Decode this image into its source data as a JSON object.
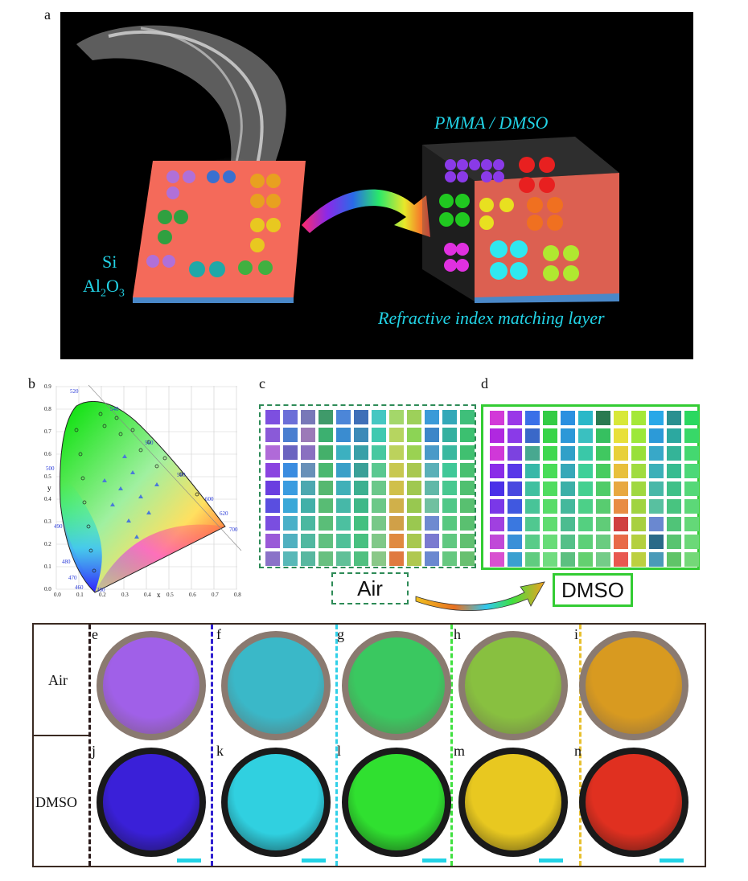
{
  "panel_a": {
    "label": "a",
    "title_material": "PMMA / DMSO",
    "layer_caption": "Refractive index matching layer",
    "si_label": "Si",
    "al2o3_label_base": "Al",
    "al2o3_sub1": "2",
    "al2o3_mid": "O",
    "al2o3_sub2": "3",
    "substrate_color": "#f46a5a",
    "text_color": "#22d3e6"
  },
  "panel_b": {
    "label": "b",
    "y_axis_letter": "y",
    "x_axis_letter": "x",
    "x_ticks": [
      "0.0",
      "0.1",
      "0.2",
      "0.3",
      "0.4",
      "0.5",
      "0.6",
      "0.7",
      "0.8"
    ],
    "y_ticks": [
      "0.0",
      "0.1",
      "0.2",
      "0.3",
      "0.4",
      "0.5",
      "0.6",
      "0.7",
      "0.8",
      "0.9"
    ],
    "wavelengths": [
      "520",
      "540",
      "560",
      "580",
      "600",
      "620",
      "700",
      "500",
      "490",
      "480",
      "470",
      "460",
      "380"
    ]
  },
  "panel_c": {
    "label": "c",
    "medium": "Air",
    "colors": [
      "#7d4fe0",
      "#6b6fd8",
      "#7878b8",
      "#3f9a6a",
      "#4c86d8",
      "#3f6fb8",
      "#45c7c2",
      "#a4d76a",
      "#9dd05a",
      "#3a9ad8",
      "#33a8b8",
      "#3fbf7a",
      "#8a5ad8",
      "#4a7fd0",
      "#9c7ab8",
      "#3cb070",
      "#3a8cd0",
      "#3c8ab8",
      "#40c9b0",
      "#b6d560",
      "#8cd455",
      "#3c86c8",
      "#35b0a0",
      "#3cc070",
      "#b06ad8",
      "#6a64c0",
      "#8a70c0",
      "#44b06a",
      "#3cb0c0",
      "#38a0a8",
      "#48c8a0",
      "#bcd25c",
      "#9ad252",
      "#4a9ac8",
      "#3ab8a0",
      "#40c070",
      "#8a44e0",
      "#3a8ce0",
      "#6890b8",
      "#4ab870",
      "#3aa0c8",
      "#3aa098",
      "#5ac890",
      "#c8c850",
      "#a8c850",
      "#5ab0b8",
      "#40c898",
      "#48c070",
      "#6a3ee0",
      "#3a9ce0",
      "#4ca8b0",
      "#56b870",
      "#40b0b8",
      "#3cb090",
      "#6ac88a",
      "#d0c04a",
      "#a0c850",
      "#60b8a8",
      "#48c890",
      "#50c070",
      "#5a4ee0",
      "#3aa8d8",
      "#42b0a8",
      "#58bc74",
      "#46b8a8",
      "#3eb888",
      "#6cc888",
      "#d0b04a",
      "#98c850",
      "#70c0a0",
      "#50c888",
      "#58c070",
      "#7a4ee0",
      "#4ab0c8",
      "#4ab8a0",
      "#5abe78",
      "#4cc0a0",
      "#44c080",
      "#78c888",
      "#d0a048",
      "#9ac850",
      "#6e8ad0",
      "#58c880",
      "#5ac070",
      "#9a5ad8",
      "#50b0c0",
      "#50b8a0",
      "#60c080",
      "#50c098",
      "#48c080",
      "#80c888",
      "#e08a40",
      "#a8c850",
      "#7a7ad0",
      "#60c880",
      "#60c070",
      "#8a72c8",
      "#58b8b8",
      "#58b8a0",
      "#68c080",
      "#60c098",
      "#50c080",
      "#8ac888",
      "#e07a40",
      "#b0c850",
      "#6a88d0",
      "#66c880",
      "#68c070"
    ]
  },
  "panel_d": {
    "label": "d",
    "medium": "DMSO",
    "colors": [
      "#d23ad8",
      "#9a38e8",
      "#3a70e8",
      "#33cc44",
      "#2a90e0",
      "#2ab8c8",
      "#2a7a50",
      "#d8e838",
      "#a4e838",
      "#28a8e8",
      "#2a9090",
      "#2ad860",
      "#b028e0",
      "#8a3ae8",
      "#3a68c8",
      "#38d448",
      "#2c98d8",
      "#3ac0c0",
      "#36c060",
      "#e8e03a",
      "#9ce83a",
      "#2c9ad8",
      "#2ca8a0",
      "#38d868",
      "#d038d8",
      "#7c42e0",
      "#48a890",
      "#40d850",
      "#30a0c8",
      "#3ac8a8",
      "#40c860",
      "#e8d03a",
      "#98e03a",
      "#38a8c8",
      "#34b498",
      "#44d870",
      "#8a2ce8",
      "#5838e8",
      "#38b8a8",
      "#48dc58",
      "#36a8b8",
      "#3ed098",
      "#48cc60",
      "#e8c03c",
      "#a0dc40",
      "#3cb0b8",
      "#38bc90",
      "#4cd878",
      "#4a30e8",
      "#4848e0",
      "#40c0a0",
      "#50dc60",
      "#3cb0a8",
      "#44d090",
      "#50cc68",
      "#e8a840",
      "#a0d840",
      "#48b8a8",
      "#40c088",
      "#54d878",
      "#7a38e8",
      "#4058e0",
      "#48c498",
      "#58dc68",
      "#44b89c",
      "#4cd088",
      "#58cc70",
      "#e88c44",
      "#a0d440",
      "#58c0a0",
      "#48c480",
      "#5cd878",
      "#a040e0",
      "#3a78e0",
      "#50c890",
      "#60dc70",
      "#4cbc90",
      "#54d080",
      "#60cc78",
      "#d04040",
      "#a8d040",
      "#6a88d0",
      "#50c478",
      "#64d878",
      "#c048d8",
      "#3a90d8",
      "#58cc88",
      "#68dc78",
      "#54c088",
      "#5cd078",
      "#6acc80",
      "#e86a48",
      "#b4d040",
      "#2a6a88",
      "#58c470",
      "#6cd878",
      "#d850d0",
      "#3aa0d0",
      "#60cc80",
      "#70dc80",
      "#5cc080",
      "#64d070",
      "#74cc88",
      "#e85850",
      "#bcd040",
      "#4a9ab8",
      "#60c468",
      "#74d878"
    ]
  },
  "panel_efn": {
    "row_labels": [
      "Air",
      "DMSO"
    ],
    "air_labels": [
      "e",
      "f",
      "g",
      "h",
      "i"
    ],
    "dmso_labels": [
      "j",
      "k",
      "l",
      "m",
      "n"
    ],
    "air_colors": [
      "#a060e8",
      "#3ab8c8",
      "#3ac860",
      "#88c040",
      "#d89a20"
    ],
    "dmso_colors": [
      "#3a20d8",
      "#30d0e0",
      "#30e030",
      "#e8c820",
      "#e03020"
    ],
    "air_rim": "#8a7a70",
    "dmso_rim": "#1a1a1a",
    "divider_colors": [
      "#2a1a1a",
      "#3020d0",
      "#30d0e8",
      "#40e040",
      "#e8c030"
    ],
    "scalebar_color": "#22d3e6"
  }
}
